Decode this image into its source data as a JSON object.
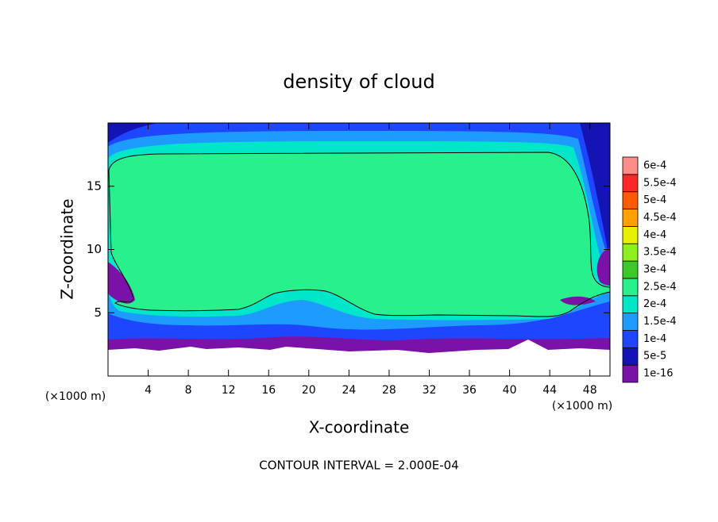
{
  "chart_data": {
    "type": "contour",
    "title": "density of cloud",
    "xlabel": "X-coordinate",
    "ylabel": "Z-coordinate",
    "x_unit_label": "(×1000 m)",
    "y_unit_label": "(×1000 m)",
    "footer": "CONTOUR INTERVAL = 2.000E-04",
    "xlim": [
      0,
      50
    ],
    "ylim": [
      0,
      20
    ],
    "xticks": [
      4,
      8,
      12,
      16,
      20,
      24,
      28,
      32,
      36,
      40,
      44,
      48
    ],
    "yticks": [
      5,
      10,
      15
    ],
    "levels": [
      {
        "value": 1e-16,
        "label": "1e-16",
        "color": "#7a12a8"
      },
      {
        "value": 5e-05,
        "label": "5e-5",
        "color": "#1414b4"
      },
      {
        "value": 0.0001,
        "label": "1e-4",
        "color": "#1e46ff"
      },
      {
        "value": 0.00015,
        "label": "1.5e-4",
        "color": "#1e9bff"
      },
      {
        "value": 0.0002,
        "label": "2e-4",
        "color": "#00e6c8"
      },
      {
        "value": 0.00025,
        "label": "2.5e-4",
        "color": "#28f08c"
      },
      {
        "value": 0.0003,
        "label": "3e-4",
        "color": "#3cc828"
      },
      {
        "value": 0.00035,
        "label": "3.5e-4",
        "color": "#8cf01e"
      },
      {
        "value": 0.0004,
        "label": "4e-4",
        "color": "#e6f000"
      },
      {
        "value": 0.00045,
        "label": "4.5e-4",
        "color": "#ffa000"
      },
      {
        "value": 0.0005,
        "label": "5e-4",
        "color": "#ff5a00"
      },
      {
        "value": 0.00055,
        "label": "5.5e-4",
        "color": "#ff2828"
      },
      {
        "value": 0.0006,
        "label": "6e-4",
        "color": "#ff8c8c"
      }
    ]
  }
}
